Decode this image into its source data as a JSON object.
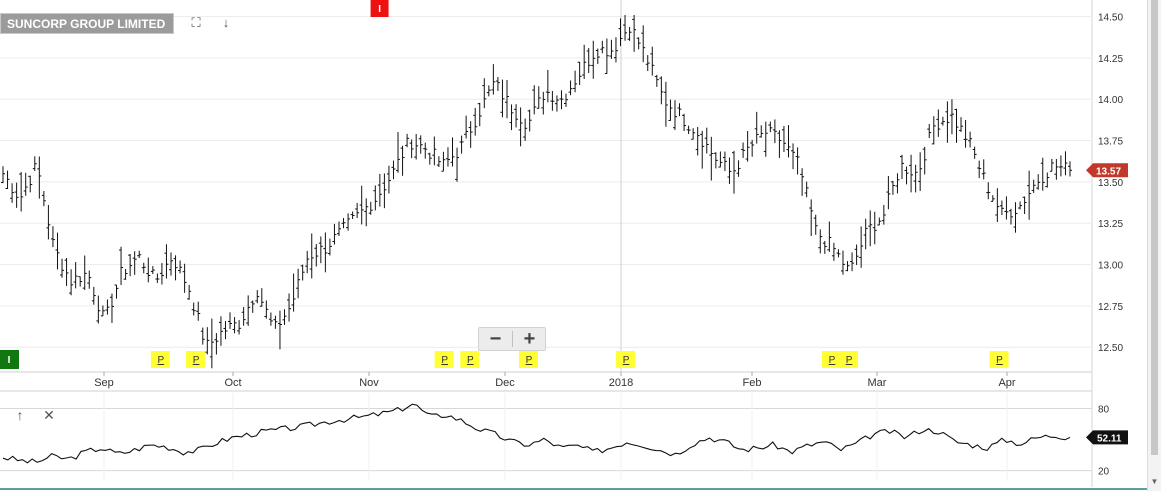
{
  "header": {
    "title": "SUNCORP GROUP LIMITED",
    "fullscreen_icon": "expand-icon",
    "download_icon": "arrow-down-icon"
  },
  "zoom": {
    "minus_label": "−",
    "plus_label": "+"
  },
  "indicator_controls": {
    "up_icon": "arrow-up-icon",
    "close_icon": "close-icon"
  },
  "colors": {
    "price_bar": "#111111",
    "last_price_badge": "#c0392b",
    "oscillator_badge": "#111111",
    "marker_p": "#ffff33",
    "marker_i_red": "#ee1111",
    "marker_i_green": "#117711",
    "grid": "#ececec"
  },
  "chart_data": [
    {
      "type": "ohlc",
      "title": "SUNCORP GROUP LIMITED",
      "x_axis_labels": [
        "Sep",
        "Oct",
        "Nov",
        "Dec",
        "2018",
        "Feb",
        "Mar",
        "Apr"
      ],
      "y_ticks": [
        "14.50",
        "14.25",
        "14.00",
        "13.75",
        "13.50",
        "13.25",
        "13.00",
        "12.75",
        "12.50"
      ],
      "ylim": [
        12.35,
        14.6
      ],
      "last_price": "13.57",
      "grid": true,
      "price_keypoints": [
        13.55,
        13.4,
        13.6,
        13.1,
        12.9,
        12.95,
        12.65,
        12.95,
        13.05,
        12.9,
        13.05,
        12.85,
        12.5,
        12.6,
        12.65,
        12.85,
        12.6,
        12.75,
        13.05,
        13.1,
        13.2,
        13.3,
        13.4,
        13.55,
        13.75,
        13.7,
        13.6,
        13.7,
        13.9,
        14.1,
        13.95,
        13.85,
        14.05,
        14.0,
        14.15,
        14.3,
        14.3,
        14.45,
        14.25,
        14.0,
        13.9,
        13.8,
        13.65,
        13.55,
        13.7,
        13.8,
        13.75,
        13.6,
        13.2,
        13.1,
        12.95,
        13.2,
        13.3,
        13.6,
        13.55,
        13.85,
        13.9,
        13.75,
        13.5,
        13.3,
        13.35,
        13.5,
        13.6,
        13.57
      ],
      "markers": [
        {
          "label": "I",
          "kind": "red-top",
          "at": 0.352
        },
        {
          "label": "I",
          "kind": "green-bottom",
          "at": 0.0
        },
        {
          "label": "P",
          "at": 0.147
        },
        {
          "label": "P",
          "at": 0.18
        },
        {
          "label": "P",
          "at": 0.413
        },
        {
          "label": "P",
          "at": 0.437
        },
        {
          "label": "P",
          "at": 0.492
        },
        {
          "label": "P",
          "at": 0.583
        },
        {
          "label": "P",
          "at": 0.776
        },
        {
          "label": "P",
          "at": 0.792
        },
        {
          "label": "P",
          "at": 0.933
        }
      ]
    },
    {
      "type": "line",
      "y_ticks": [
        "80",
        "20"
      ],
      "ylim": [
        10,
        95
      ],
      "last_value": "52.11",
      "values": [
        33,
        30,
        28,
        34,
        31,
        38,
        42,
        36,
        40,
        45,
        43,
        38,
        40,
        47,
        52,
        55,
        58,
        60,
        62,
        65,
        68,
        70,
        72,
        75,
        78,
        85,
        72,
        74,
        68,
        60,
        55,
        48,
        45,
        50,
        42,
        44,
        38,
        42,
        48,
        45,
        40,
        36,
        46,
        52,
        48,
        40,
        42,
        45,
        38,
        44,
        48,
        40,
        46,
        55,
        58,
        52,
        60,
        58,
        48,
        45,
        42,
        50,
        46,
        52,
        54,
        52
      ]
    }
  ]
}
